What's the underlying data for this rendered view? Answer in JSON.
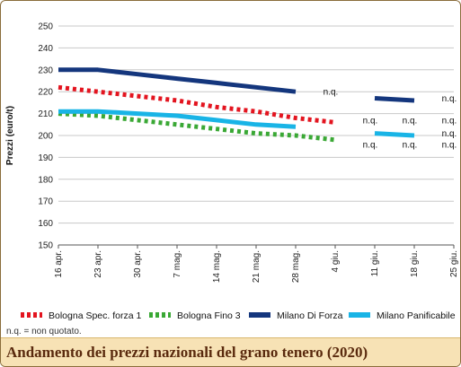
{
  "chart_data": {
    "type": "line",
    "title": "Andamento dei prezzi nazionali del grano tenero (2020)",
    "ylabel": "Prezzi (euro/t)",
    "xlabel": "",
    "categories": [
      "16 apr.",
      "23 apr.",
      "30 apr.",
      "7 mag.",
      "14 mag.",
      "21 mag.",
      "28 mag.",
      "4 giu.",
      "11 giu.",
      "18 giu.",
      "25 giu."
    ],
    "ylim": [
      150,
      250
    ],
    "yticks": [
      150,
      160,
      170,
      180,
      190,
      200,
      210,
      220,
      230,
      240,
      250
    ],
    "grid": true,
    "legend_position": "bottom",
    "series": [
      {
        "name": "Bologna Spec. forza 1",
        "color": "#e3141f",
        "dash": "dotted",
        "values": [
          222,
          220,
          218,
          216,
          213,
          211,
          208,
          206,
          null,
          null,
          null
        ]
      },
      {
        "name": "Bologna Fino 3",
        "color": "#3aa835",
        "dash": "dotted",
        "values": [
          210,
          209,
          207,
          205,
          203,
          201,
          200,
          198,
          null,
          null,
          null
        ]
      },
      {
        "name": "Milano Di Forza",
        "color": "#14367d",
        "dash": "solid",
        "values": [
          230,
          230,
          228,
          226,
          224,
          222,
          220,
          null,
          217,
          216,
          null
        ]
      },
      {
        "name": "Milano Panificabile",
        "color": "#19b4e6",
        "dash": "solid",
        "values": [
          211,
          211,
          210,
          209,
          207,
          205,
          204,
          null,
          201,
          200,
          null
        ]
      }
    ],
    "annotations": [
      {
        "text": "n.q.",
        "x": "4 giu.",
        "y": 220
      },
      {
        "text": "n.q.",
        "x": "11 giu.",
        "y": 207
      },
      {
        "text": "n.q.",
        "x": "11 giu.",
        "y": 196
      },
      {
        "text": "n.q.",
        "x": "18 giu.",
        "y": 207
      },
      {
        "text": "n.q.",
        "x": "18 giu.",
        "y": 196
      },
      {
        "text": "n.q.",
        "x": "25 giu.",
        "y": 217
      },
      {
        "text": "n.q.",
        "x": "25 giu.",
        "y": 207
      },
      {
        "text": "n.q.",
        "x": "25 giu.",
        "y": 201
      },
      {
        "text": "n.q.",
        "x": "25 giu.",
        "y": 196
      }
    ]
  },
  "note": "n.q. = non quotato.",
  "caption": "Andamento dei prezzi nazionali del grano tenero (2020)"
}
